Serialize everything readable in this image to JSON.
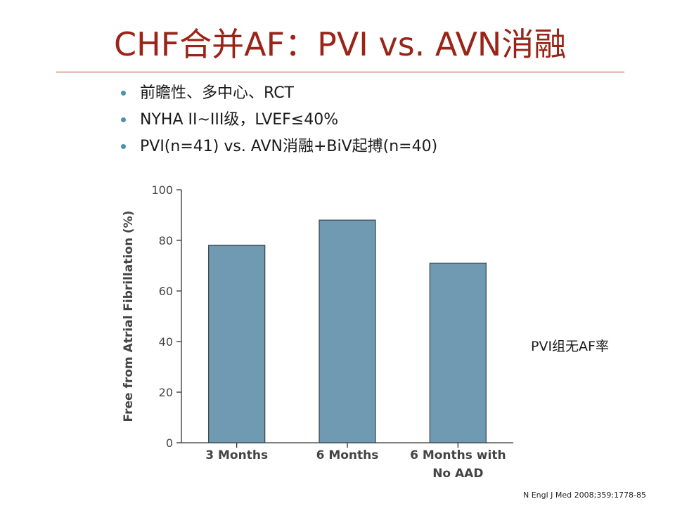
{
  "slide": {
    "title": "CHF合并AF：PVI vs. AVN消融",
    "bullets": [
      "前瞻性、多中心、RCT",
      "NYHA II~III级，LVEF≤40%",
      "PVI(n=41) vs. AVN消融+BiV起搏(n=40)"
    ],
    "side_note": "PVI组无AF率",
    "citation": "N Engl J Med 2008;359:1778-85"
  },
  "colors": {
    "title": "#9a2418",
    "rule": "#b5473a",
    "bullet": "#4f8fb0",
    "bar_fill": "#6f9ab1",
    "bar_stroke": "#3a4a55",
    "axis": "#333333"
  },
  "chart_data": {
    "type": "bar",
    "categories": [
      [
        "3 Months"
      ],
      [
        "6 Months"
      ],
      [
        "6 Months with",
        "No AAD"
      ]
    ],
    "values": [
      78,
      88,
      71
    ],
    "ylabel": "Free from Atrial Fibrillation (%)",
    "ylim": [
      0,
      100
    ],
    "yticks": [
      0,
      20,
      40,
      60,
      80,
      100
    ],
    "grid": false
  }
}
